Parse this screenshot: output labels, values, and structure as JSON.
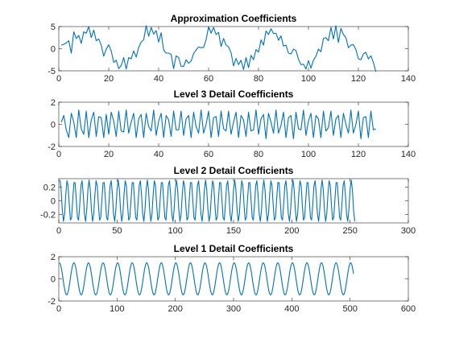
{
  "chart_data": [
    {
      "type": "line",
      "title": "Approximation Coefficients",
      "xlim": [
        0,
        140
      ],
      "ylim": [
        -5,
        5
      ],
      "xticks": [
        0,
        20,
        40,
        60,
        80,
        100,
        120,
        140
      ],
      "yticks": [
        -5,
        0,
        5
      ],
      "series": [
        {
          "color": "#0072bd",
          "x": [
            1,
            2,
            3,
            4,
            5,
            6,
            7,
            8,
            9,
            10,
            11,
            12,
            13,
            14,
            15,
            16,
            17,
            18,
            19,
            20,
            21,
            22,
            23,
            24,
            25,
            26,
            27,
            28,
            29,
            30,
            31,
            32,
            33,
            34,
            35,
            36,
            37,
            38,
            39,
            40,
            41,
            42,
            43,
            44,
            45,
            46,
            47,
            48,
            49,
            50,
            51,
            52,
            53,
            54,
            55,
            56,
            57,
            58,
            59,
            60,
            61,
            62,
            63,
            64,
            65,
            66,
            67,
            68,
            69,
            70,
            71,
            72,
            73,
            74,
            75,
            76,
            77,
            78,
            79,
            80,
            81,
            82,
            83,
            84,
            85,
            86,
            87,
            88,
            89,
            90,
            91,
            92,
            93,
            94,
            95,
            96,
            97,
            98,
            99,
            100,
            101,
            102,
            103,
            104,
            105,
            106,
            107,
            108,
            109,
            110,
            111,
            112,
            113,
            114,
            115,
            116,
            117,
            118,
            119,
            120,
            121,
            122,
            123,
            124,
            125,
            126,
            127
          ],
          "y": [
            0.8,
            1.0,
            1.3,
            1.8,
            -1.0,
            3.8,
            2.3,
            3.0,
            1.2,
            3.8,
            3.5,
            5.0,
            2.5,
            4.2,
            1.8,
            2.2,
            0.8,
            -1.7,
            -0.1,
            0.9,
            -0.5,
            -3.1,
            -2.6,
            -4.5,
            -3.8,
            -2.0,
            -4.6,
            -2.0,
            -2.3,
            -0.5,
            -1.9,
            0.3,
            1.5,
            2.0,
            5.2,
            2.8,
            4.8,
            3.3,
            4.1,
            1.5,
            3.6,
            -0.3,
            -1.0,
            -1.0,
            -1.3,
            -4.5,
            -1.6,
            -2.0,
            -4.0,
            -4.0,
            -2.5,
            -3.3,
            -2.8,
            -1.1,
            -0.3,
            0.4,
            0.2,
            0.3,
            2.0,
            5.0,
            3.5,
            4.8,
            3.2,
            3.7,
            0.5,
            2.3,
            0.8,
            0.4,
            -0.9,
            -3.9,
            -2.2,
            -3.6,
            -2.6,
            -4.7,
            -2.0,
            -4.3,
            -1.5,
            -2.5,
            -0.2,
            -0.8,
            2.0,
            0.8,
            4.0,
            3.2,
            4.5,
            3.4,
            3.5,
            1.9,
            2.9,
            0.6,
            0.8,
            -1.0,
            -1.2,
            -0.1,
            -0.4,
            -2.4,
            -3.6,
            -3.5,
            -4.6,
            -2.7,
            -4.4,
            -2.6,
            -1.7,
            -0.1,
            -0.7,
            2.3,
            2.5,
            1.8,
            4.8,
            2.2,
            5.2,
            1.4,
            4.6,
            3.2,
            2.5,
            0.2,
            0.8,
            0.9,
            -0.2,
            -2.3,
            -2.5,
            -1.2,
            -0.8,
            -2.3,
            -1.6,
            -3.1,
            -5.2
          ]
        }
      ]
    },
    {
      "type": "line",
      "title": "Level 3 Detail Coefficients",
      "xlim": [
        0,
        140
      ],
      "ylim": [
        -2,
        2
      ],
      "xticks": [
        0,
        20,
        40,
        60,
        80,
        100,
        120,
        140
      ],
      "yticks": [
        -2,
        0,
        2
      ],
      "series": [
        {
          "color": "#0072bd",
          "x": [
            1,
            2,
            3,
            4,
            5,
            6,
            7,
            8,
            9,
            10,
            11,
            12,
            13,
            14,
            15,
            16,
            17,
            18,
            19,
            20,
            21,
            22,
            23,
            24,
            25,
            26,
            27,
            28,
            29,
            30,
            31,
            32,
            33,
            34,
            35,
            36,
            37,
            38,
            39,
            40,
            41,
            42,
            43,
            44,
            45,
            46,
            47,
            48,
            49,
            50,
            51,
            52,
            53,
            54,
            55,
            56,
            57,
            58,
            59,
            60,
            61,
            62,
            63,
            64,
            65,
            66,
            67,
            68,
            69,
            70,
            71,
            72,
            73,
            74,
            75,
            76,
            77,
            78,
            79,
            80,
            81,
            82,
            83,
            84,
            85,
            86,
            87,
            88,
            89,
            90,
            91,
            92,
            93,
            94,
            95,
            96,
            97,
            98,
            99,
            100,
            101,
            102,
            103,
            104,
            105,
            106,
            107,
            108,
            109,
            110,
            111,
            112,
            113,
            114,
            115,
            116,
            117,
            118,
            119,
            120,
            121,
            122,
            123,
            124,
            125,
            126,
            127
          ],
          "y": [
            0.2,
            0.8,
            -0.5,
            -1.2,
            1.0,
            0.2,
            -1.2,
            1.3,
            -0.4,
            -0.9,
            1.2,
            -1.2,
            0.4,
            1.1,
            -1.1,
            0.7,
            0.6,
            -1.2,
            0.9,
            -0.9,
            1.1,
            0.3,
            -1.1,
            1.2,
            -0.6,
            -0.7,
            1.3,
            -0.8,
            0.2,
            1.0,
            -1.2,
            0.5,
            0.9,
            -1.2,
            1.0,
            -0.2,
            -0.6,
            1.3,
            -1.0,
            0.3,
            1.0,
            -1.2,
            0.8,
            0.4,
            -1.1,
            1.2,
            -0.5,
            -0.5,
            1.2,
            -1.0,
            0.5,
            0.8,
            -1.2,
            1.1,
            -0.2,
            -0.8,
            1.3,
            -0.8,
            0.0,
            1.2,
            -1.2,
            0.6,
            0.7,
            -1.1,
            1.2,
            -0.4,
            -0.6,
            1.2,
            -0.9,
            0.2,
            1.1,
            -1.2,
            0.8,
            0.4,
            -1.1,
            1.1,
            -0.6,
            -0.5,
            1.3,
            -0.9,
            0.5,
            0.9,
            -1.3,
            1.0,
            0.2,
            -0.8,
            1.3,
            -0.8,
            -0.1,
            1.1,
            -1.2,
            0.6,
            0.8,
            -1.3,
            1.1,
            -0.4,
            -0.5,
            1.3,
            -1.0,
            0.3,
            1.0,
            -1.2,
            0.8,
            0.5,
            -1.2,
            1.2,
            -0.6,
            -0.3,
            1.2,
            -1.0,
            0.5,
            0.8,
            -1.2,
            1.0,
            0.0,
            -0.8,
            1.3,
            -0.8,
            0.0,
            1.2,
            -1.3,
            0.6,
            0.7,
            -1.2,
            1.2,
            -0.5,
            -0.4
          ]
        }
      ]
    },
    {
      "type": "line",
      "title": "Level 2 Detail Coefficients",
      "xlim": [
        0,
        300
      ],
      "ylim": [
        -0.32,
        0.32
      ],
      "xticks": [
        0,
        50,
        100,
        150,
        200,
        250,
        300
      ],
      "yticks": [
        -0.2,
        0,
        0.2
      ],
      "ytick_labels": [
        "-0.2",
        "0",
        "0.2"
      ],
      "description_of_signal": "regular oscillation, amplitude 0.3, period about 6.25 samples, samples 1 to 254",
      "series": [
        {
          "color": "#0072bd",
          "x_start": 1,
          "x_end": 254,
          "amplitude": 0.3,
          "period": 6.25
        }
      ]
    },
    {
      "type": "line",
      "title": "Level 1 Detail Coefficients",
      "xlim": [
        0,
        600
      ],
      "ylim": [
        -2,
        2
      ],
      "xticks": [
        0,
        100,
        200,
        300,
        400,
        500,
        600
      ],
      "yticks": [
        -2,
        0,
        2
      ],
      "series": [
        {
          "color": "#0072bd",
          "x_start": 1,
          "x_end": 506,
          "amplitude": 1.45,
          "period": 25
        }
      ]
    }
  ]
}
